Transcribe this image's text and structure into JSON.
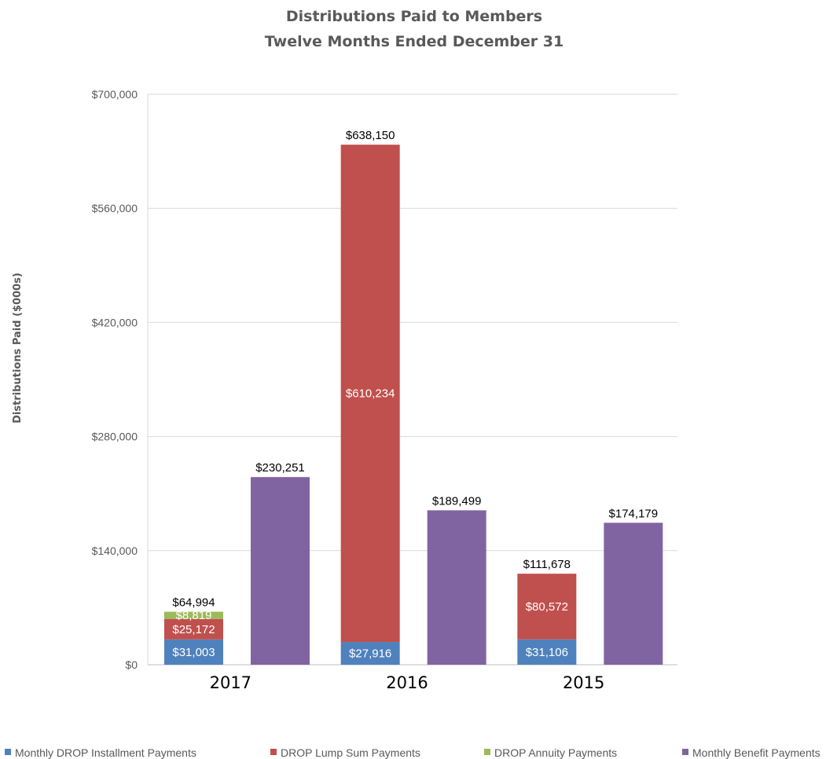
{
  "chart_data": {
    "type": "bar",
    "title": "Distributions Paid to Members",
    "subtitle": "Twelve Months Ended December 31",
    "ylabel": "Distributions Paid ($000s)",
    "xlabel": "",
    "ylim": [
      0,
      700000
    ],
    "yticks": [
      0,
      140000,
      280000,
      420000,
      560000,
      700000
    ],
    "ytick_labels": [
      "$0",
      "$140,000",
      "$280,000",
      "$420,000",
      "$560,000",
      "$700,000"
    ],
    "categories": [
      "2017",
      "2016",
      "2015"
    ],
    "grid": true,
    "legend_position": "bottom",
    "stacked_series": [
      {
        "name": "Monthly DROP Installment Payments",
        "color": "#4f81bd",
        "values": [
          31003,
          27916,
          31106
        ],
        "labels": [
          "$31,003",
          "$27,916",
          "$31,106"
        ]
      },
      {
        "name": "DROP Lump Sum Payments",
        "color": "#c0504d",
        "values": [
          25172,
          610234,
          80572
        ],
        "labels": [
          "$25,172",
          "$610,234",
          "$80,572"
        ]
      },
      {
        "name": "DROP Annuity Payments",
        "color": "#9bbb59",
        "values": [
          8819,
          0,
          0
        ],
        "labels": [
          "$8,819",
          "",
          ""
        ]
      }
    ],
    "stack_totals": [
      64994,
      638150,
      111678
    ],
    "stack_total_labels": [
      "$64,994",
      "$638,150",
      "$111,678"
    ],
    "side_series": {
      "name": "Monthly Benefit Payments",
      "color": "#8064a2",
      "values": [
        230251,
        189499,
        174179
      ],
      "labels": [
        "$230,251",
        "$189,499",
        "$174,179"
      ]
    }
  },
  "legend": [
    {
      "label": "Monthly DROP Installment Payments",
      "color": "#4f81bd"
    },
    {
      "label": "DROP Lump Sum Payments",
      "color": "#c0504d"
    },
    {
      "label": "DROP Annuity Payments",
      "color": "#9bbb59"
    },
    {
      "label": "Monthly Benefit Payments",
      "color": "#8064a2"
    }
  ]
}
